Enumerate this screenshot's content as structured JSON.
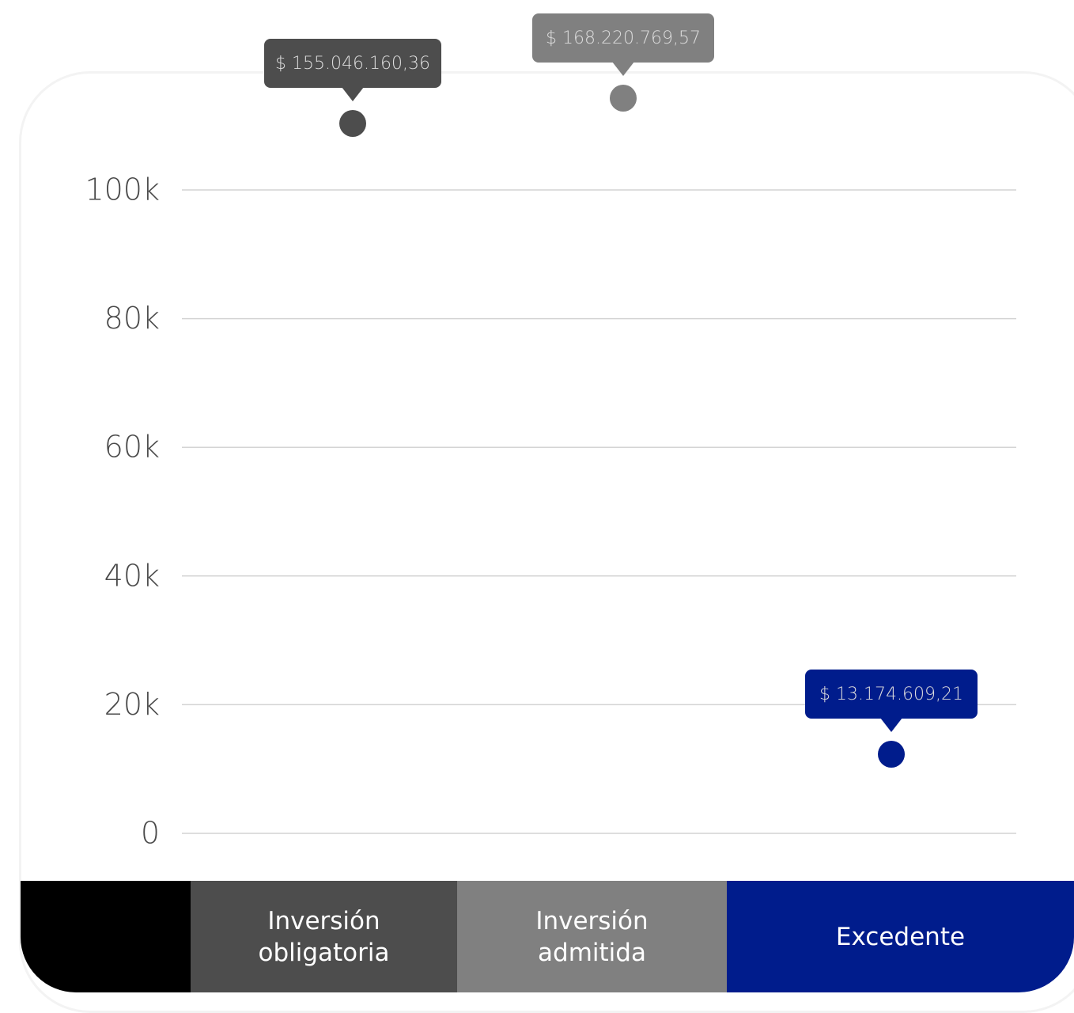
{
  "chart_data": {
    "type": "scatter",
    "yticks": [
      "100k",
      "80k",
      "60k",
      "40k",
      "20k",
      "0"
    ],
    "ytick_values": [
      100000,
      80000,
      60000,
      40000,
      20000,
      0
    ],
    "ylim": [
      0,
      100000
    ],
    "grid": true,
    "legend_position": "bottom",
    "points": [
      {
        "category": "Inversión obligatoria",
        "value_label": "$ 155.046.160,36",
        "color": "#4d4d4d"
      },
      {
        "category": "Inversión admitida",
        "value_label": "$ 168.220.769,57",
        "color": "#808080"
      },
      {
        "category": "Excedente",
        "value_label": "$ 13.174.609,21",
        "color": "#001c8c"
      }
    ]
  },
  "footer": {
    "first_cell_color": "#000000",
    "cells": [
      {
        "line1": "Inversión",
        "line2": "obligatoria",
        "color": "#4d4d4d"
      },
      {
        "line1": "Inversión",
        "line2": "admitida",
        "color": "#808080"
      },
      {
        "line1": "Excedente",
        "line2": "",
        "color": "#001c8c"
      }
    ]
  }
}
